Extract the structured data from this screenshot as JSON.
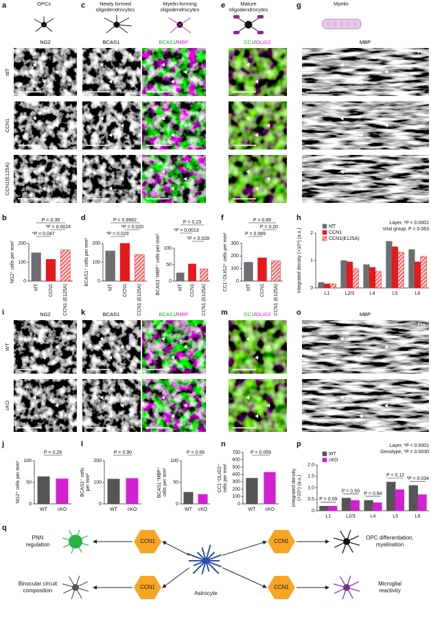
{
  "panel_letters": [
    "a",
    "c",
    "e",
    "g",
    "b",
    "d",
    "f",
    "h",
    "i",
    "k",
    "m",
    "o",
    "j",
    "l",
    "n",
    "p",
    "q"
  ],
  "headers": [
    [
      "OPCs"
    ],
    [
      "Newly formed",
      "oligodendrocytes"
    ],
    [
      "Myelin-forming",
      "oligodendrocytes"
    ],
    [
      "Mature",
      "oligodendrocytes"
    ],
    [
      "Myelin"
    ]
  ],
  "stains_top": [
    {
      "parts": [
        "NG2"
      ],
      "colors": [
        "#000000"
      ]
    },
    {
      "parts": [
        "BCAS1"
      ],
      "colors": [
        "#000000"
      ]
    },
    {
      "parts": [
        "BCAS1",
        "/",
        "MBP"
      ],
      "colors": [
        "#22a822",
        "#000000",
        "#d020d0"
      ]
    },
    {
      "parts": [
        "CC1",
        "/",
        "OLIG2"
      ],
      "colors": [
        "#22a822",
        "#000000",
        "#d020d0"
      ]
    },
    {
      "parts": [
        "MBP"
      ],
      "colors": [
        "#000000"
      ]
    }
  ],
  "stains_bottom": [
    {
      "parts": [
        "NG2"
      ],
      "colors": [
        "#000000"
      ]
    },
    {
      "parts": [
        "BCAS1"
      ],
      "colors": [
        "#000000"
      ]
    },
    {
      "parts": [
        "BCAS1",
        "/",
        "MBP"
      ],
      "colors": [
        "#22a822",
        "#000000",
        "#d020d0"
      ]
    },
    {
      "parts": [
        "CC1",
        "/",
        "OLIG2"
      ],
      "colors": [
        "#22a822",
        "#000000",
        "#d020d0"
      ]
    },
    {
      "parts": [
        "MBP"
      ],
      "colors": [
        "#000000"
      ]
    }
  ],
  "rows_top": [
    "tdT",
    "CCN1",
    "CCN1(E125A)"
  ],
  "rows_bottom": [
    "WT",
    "cKO"
  ],
  "pia": [
    "Pia",
    "Pia"
  ],
  "chart_data": [
    {
      "type": "bar",
      "ylabel": [
        "NG2⁺ cells per mm²"
      ],
      "categories": [
        "tdT",
        "CCN1",
        "CCN1 (E125A)"
      ],
      "values": [
        150,
        115,
        165
      ],
      "colors": [
        "#6d6e71",
        "#e41a1c",
        "#e41a1c"
      ],
      "hatch": [
        false,
        false,
        true
      ],
      "ylim": [
        0,
        200
      ],
      "yticks": [
        0,
        100,
        200
      ],
      "annotations": [
        "P = 0.39",
        "*P = 0.0024",
        "*P = 0.047"
      ]
    },
    {
      "type": "bar",
      "ylabel": [
        "BCAS1⁺ cells per mm²"
      ],
      "categories": [
        "tdT",
        "CCN1",
        "CCN1 (E125A)"
      ],
      "values": [
        160,
        200,
        140
      ],
      "colors": [
        "#6d6e71",
        "#e41a1c",
        "#e41a1c"
      ],
      "hatch": [
        false,
        false,
        true
      ],
      "ylim": [
        0,
        200
      ],
      "yticks": [
        0,
        100,
        200
      ],
      "annotations": [
        "P = 0.9982",
        "*P = 0.020",
        "*P = 0.029"
      ]
    },
    {
      "type": "bar",
      "ylabel": [
        "BCAS1⁺MBP⁺ cells per mm²"
      ],
      "categories": [
        "tdT",
        "CCN1",
        "CCN1 (E125A)"
      ],
      "values": [
        25,
        52,
        37
      ],
      "colors": [
        "#6d6e71",
        "#e41a1c",
        "#e41a1c"
      ],
      "hatch": [
        false,
        false,
        true
      ],
      "ylim": [
        0,
        100
      ],
      "yticks": [
        0,
        50,
        100
      ],
      "annotations": [
        "P = 0.23",
        "*P = 0.0013",
        "*P = 0.028"
      ]
    },
    {
      "type": "bar",
      "ylabel": [
        "CC1⁺OLIG2⁺ cells per mm²"
      ],
      "categories": [
        "tdT",
        "CCN1",
        "CCN1 (E125A)"
      ],
      "values": [
        150,
        185,
        160
      ],
      "colors": [
        "#6d6e71",
        "#e41a1c",
        "#e41a1c"
      ],
      "hatch": [
        false,
        false,
        true
      ],
      "ylim": [
        0,
        300
      ],
      "yticks": [
        0,
        100,
        200,
        300
      ],
      "annotations": [
        "P = 0.89",
        "P = 0.20",
        "P = 0.069"
      ]
    },
    {
      "type": "grouped-bar",
      "ylabel": [
        "Integrated density (×10⁴) (a.u.)"
      ],
      "categories": [
        "L1",
        "L2/3",
        "L4",
        "L5",
        "L6"
      ],
      "series": [
        {
          "name": "tdT",
          "color": "#6d6e71",
          "hatch": false,
          "values": [
            0.2,
            1.0,
            0.85,
            1.7,
            1.4
          ]
        },
        {
          "name": "CCN1",
          "color": "#e41a1c",
          "hatch": false,
          "values": [
            0.15,
            0.95,
            0.75,
            1.5,
            0.95
          ]
        },
        {
          "name": "CCN1(E125A)",
          "color": "#e41a1c",
          "hatch": true,
          "values": [
            0.15,
            0.7,
            0.6,
            1.3,
            1.15
          ]
        }
      ],
      "ylim": [
        0,
        2
      ],
      "yticks": [
        0,
        1,
        2
      ],
      "annotations": [
        "Layer, *P < 0.0001",
        "Viral group, P = 0.063"
      ]
    },
    {
      "type": "bar",
      "ylabel": [
        "NG2⁺ cells per mm²"
      ],
      "categories": [
        "WT",
        "cKO"
      ],
      "values": [
        63,
        58
      ],
      "colors": [
        "#555555",
        "#d21fd2"
      ],
      "hatch": [
        false,
        false
      ],
      "ylim": [
        0,
        100
      ],
      "yticks": [
        0,
        50,
        100
      ],
      "annotations": [
        "P = 0.29"
      ]
    },
    {
      "type": "bar",
      "ylabel": [
        "BCAS1⁺ cells",
        "per mm²"
      ],
      "categories": [
        "WT",
        "cKO"
      ],
      "values": [
        115,
        118
      ],
      "colors": [
        "#555555",
        "#d21fd2"
      ],
      "hatch": [
        false,
        false
      ],
      "ylim": [
        0,
        200
      ],
      "yticks": [
        0,
        100,
        200
      ],
      "annotations": [
        "P = 0.90"
      ]
    },
    {
      "type": "bar",
      "ylabel": [
        "BCAS1⁺MBP⁺",
        "cells per mm²"
      ],
      "categories": [
        "WT",
        "cKO"
      ],
      "values": [
        27,
        22
      ],
      "colors": [
        "#555555",
        "#d21fd2"
      ],
      "hatch": [
        false,
        false
      ],
      "ylim": [
        0,
        100
      ],
      "yticks": [
        0,
        50,
        100
      ],
      "annotations": [
        "P = 0.66"
      ]
    },
    {
      "type": "bar",
      "ylabel": [
        "CC1⁺OLIG2⁺",
        "cells per mm²"
      ],
      "categories": [
        "WT",
        "cKO"
      ],
      "values": [
        350,
        430
      ],
      "colors": [
        "#555555",
        "#d21fd2"
      ],
      "hatch": [
        false,
        false
      ],
      "ylim": [
        0,
        700
      ],
      "yticks": [
        0,
        100,
        200,
        300,
        400,
        500,
        600,
        700
      ],
      "annotations": [
        "P = 0.059"
      ]
    },
    {
      "type": "grouped-bar",
      "ylabel": [
        "Integrated density",
        "(×10⁴) (a.u.)"
      ],
      "categories": [
        "L1",
        "L2/3",
        "L4",
        "L5",
        "L6"
      ],
      "series": [
        {
          "name": "WT",
          "color": "#555555",
          "hatch": false,
          "values": [
            0.2,
            0.55,
            0.45,
            1.25,
            1.1
          ]
        },
        {
          "name": "cKO",
          "color": "#d21fd2",
          "hatch": false,
          "values": [
            0.2,
            0.45,
            0.35,
            0.92,
            0.7
          ]
        }
      ],
      "ylim": [
        0,
        2
      ],
      "yticks": [
        0,
        0.5,
        {
          "value": 1,
          "label": "1.0"
        },
        1.5,
        {
          "value": 2,
          "label": "2.0"
        }
      ],
      "annotations": [
        "Layer, *P < 0.0001",
        "Genotype, *P = 0.0030",
        "P = 0.09",
        "P = 0.50",
        "P = 0.94",
        "P = 0.12",
        "*P = 0.034"
      ]
    }
  ],
  "diagram": {
    "center": "Astrocyte",
    "ccn1": [
      "CCN1",
      "CCN1",
      "CCN1",
      "CCN1"
    ],
    "targets": [
      [
        "PNN",
        "regulation"
      ],
      [
        "OPC differentiation,",
        "myelination"
      ],
      [
        "Binocular circuit",
        "composition"
      ],
      [
        "Microglial",
        "reactivity"
      ]
    ]
  }
}
